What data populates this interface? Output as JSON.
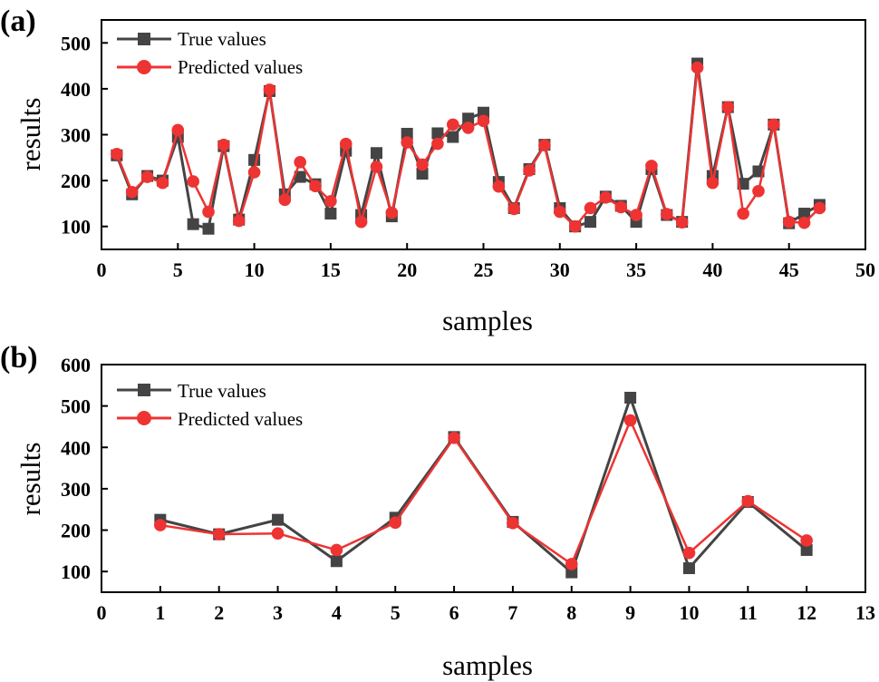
{
  "chart_data": [
    {
      "type": "line",
      "panel": "(a)",
      "xlabel": "samples",
      "ylabel": "results",
      "xlim": [
        0,
        50
      ],
      "ylim": [
        50,
        550
      ],
      "xticks": [
        0,
        5,
        10,
        15,
        20,
        25,
        30,
        35,
        40,
        45,
        50
      ],
      "yticks": [
        100,
        200,
        300,
        400,
        500
      ],
      "legend_position": "top-left",
      "x": [
        1,
        2,
        3,
        4,
        5,
        6,
        7,
        8,
        9,
        10,
        11,
        12,
        13,
        14,
        15,
        16,
        17,
        18,
        19,
        20,
        21,
        22,
        23,
        24,
        25,
        26,
        27,
        28,
        29,
        30,
        31,
        32,
        33,
        34,
        35,
        36,
        37,
        38,
        39,
        40,
        41,
        42,
        43,
        44,
        45,
        46,
        47
      ],
      "series": [
        {
          "name": "True values",
          "color": "#444444",
          "marker": "square",
          "values": [
            255,
            170,
            210,
            200,
            295,
            105,
            95,
            275,
            115,
            245,
            395,
            170,
            208,
            192,
            128,
            265,
            125,
            260,
            122,
            302,
            215,
            303,
            295,
            335,
            348,
            197,
            140,
            225,
            278,
            140,
            100,
            110,
            165,
            145,
            110,
            225,
            125,
            110,
            455,
            210,
            360,
            193,
            220,
            322,
            107,
            128,
            147
          ]
        },
        {
          "name": "Predicted values",
          "color": "#ee3333",
          "marker": "circle",
          "values": [
            258,
            175,
            208,
            195,
            310,
            198,
            132,
            278,
            112,
            218,
            398,
            158,
            240,
            188,
            155,
            280,
            110,
            230,
            130,
            283,
            235,
            280,
            322,
            315,
            330,
            187,
            138,
            222,
            277,
            132,
            100,
            140,
            163,
            142,
            125,
            232,
            127,
            109,
            446,
            195,
            360,
            128,
            177,
            322,
            110,
            108,
            140
          ]
        }
      ]
    },
    {
      "type": "line",
      "panel": "(b)",
      "xlabel": "samples",
      "ylabel": "results",
      "xlim": [
        0,
        13
      ],
      "ylim": [
        50,
        600
      ],
      "xticks": [
        0,
        1,
        2,
        3,
        4,
        5,
        6,
        7,
        8,
        9,
        10,
        11,
        12,
        13
      ],
      "yticks": [
        100,
        200,
        300,
        400,
        500,
        600
      ],
      "legend_position": "top-left",
      "x": [
        1,
        2,
        3,
        4,
        5,
        6,
        7,
        8,
        9,
        10,
        11,
        12
      ],
      "series": [
        {
          "name": "True values",
          "color": "#444444",
          "marker": "square",
          "values": [
            225,
            190,
            225,
            125,
            230,
            425,
            220,
            98,
            520,
            108,
            268,
            152
          ]
        },
        {
          "name": "Predicted values",
          "color": "#ee3333",
          "marker": "circle",
          "values": [
            212,
            190,
            192,
            152,
            218,
            423,
            217,
            118,
            465,
            145,
            270,
            175
          ]
        }
      ]
    }
  ]
}
